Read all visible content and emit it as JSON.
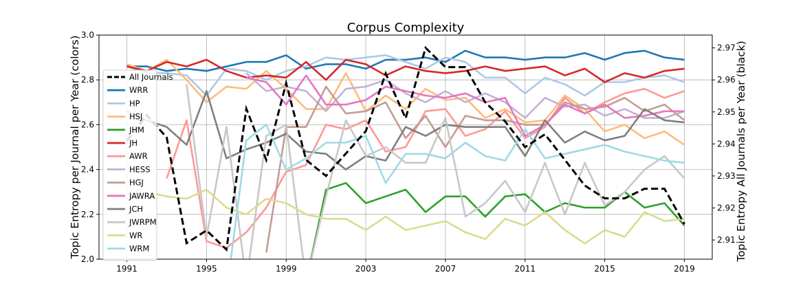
{
  "chart_data": {
    "type": "line",
    "title": "Corpus Complexity",
    "ylabel_left": "Topic Entropy per Journal per Year (colors)",
    "ylabel_right": "Topic Entropy All Journals per Year (black)",
    "x": [
      1991,
      1992,
      1993,
      1994,
      1995,
      1996,
      1997,
      1998,
      1999,
      2000,
      2001,
      2002,
      2003,
      2004,
      2005,
      2006,
      2007,
      2008,
      2009,
      2010,
      2011,
      2012,
      2013,
      2014,
      2015,
      2016,
      2017,
      2018,
      2019
    ],
    "xticks": [
      "1991",
      "1995",
      "1999",
      "2003",
      "2007",
      "2011",
      "2015",
      "2019"
    ],
    "xlim": [
      1989.6,
      2020.4
    ],
    "ylim_left": [
      2.0,
      3.0
    ],
    "ylim_right": [
      2.904,
      2.974
    ],
    "yticks_left": [
      "2.0",
      "2.2",
      "2.4",
      "2.6",
      "2.8",
      "3.0"
    ],
    "yticks_right": [
      "2.91",
      "2.92",
      "2.93",
      "2.94",
      "2.95",
      "2.96",
      "2.97"
    ],
    "grid": true,
    "legend_position": "upper-left",
    "series": [
      {
        "name": "WRR",
        "color": "#1f77b4",
        "values": [
          2.86,
          2.86,
          2.84,
          2.85,
          2.84,
          2.86,
          2.88,
          2.88,
          2.91,
          2.85,
          2.87,
          2.87,
          2.85,
          2.89,
          2.89,
          2.9,
          2.88,
          2.93,
          2.9,
          2.9,
          2.89,
          2.9,
          2.9,
          2.92,
          2.89,
          2.92,
          2.93,
          2.9,
          2.89
        ]
      },
      {
        "name": "HP",
        "color": "#aec7e8",
        "values": [
          2.86,
          2.83,
          2.83,
          2.82,
          2.73,
          2.85,
          2.84,
          2.8,
          2.84,
          2.86,
          2.9,
          2.89,
          2.9,
          2.91,
          2.88,
          2.85,
          2.9,
          2.88,
          2.81,
          2.81,
          2.74,
          2.81,
          2.78,
          2.73,
          2.79,
          2.79,
          2.81,
          2.82,
          2.79
        ]
      },
      {
        "name": "HSJ",
        "color": "#ffbb78",
        "values": [
          2.87,
          2.84,
          2.89,
          2.8,
          2.7,
          2.77,
          2.76,
          2.84,
          2.76,
          2.67,
          2.67,
          2.83,
          2.66,
          2.73,
          2.67,
          2.76,
          2.71,
          2.72,
          2.63,
          2.67,
          2.61,
          2.62,
          2.73,
          2.67,
          2.57,
          2.6,
          2.54,
          2.57,
          2.51
        ]
      },
      {
        "name": "JHM",
        "color": "#2ca02c",
        "values": [
          null,
          null,
          null,
          null,
          null,
          null,
          null,
          null,
          null,
          1.9,
          2.31,
          2.34,
          2.25,
          2.28,
          2.31,
          2.21,
          2.28,
          2.28,
          2.19,
          2.28,
          2.29,
          2.21,
          2.25,
          2.23,
          2.23,
          2.3,
          2.23,
          2.25,
          2.15
        ]
      },
      {
        "name": "JH",
        "color": "#d62728",
        "values": [
          2.86,
          2.84,
          2.88,
          2.86,
          2.89,
          2.84,
          2.81,
          2.82,
          2.81,
          2.88,
          2.8,
          2.89,
          2.87,
          2.82,
          2.86,
          2.84,
          2.83,
          2.84,
          2.86,
          2.84,
          2.85,
          2.86,
          2.82,
          2.85,
          2.79,
          2.83,
          2.81,
          2.84,
          2.85
        ]
      },
      {
        "name": "AWR",
        "color": "#ff9896",
        "values": [
          null,
          null,
          2.36,
          2.62,
          2.08,
          2.05,
          2.12,
          2.23,
          2.39,
          2.42,
          2.6,
          2.58,
          2.62,
          2.48,
          2.5,
          2.66,
          2.67,
          2.55,
          2.58,
          2.66,
          2.54,
          2.59,
          2.72,
          2.65,
          2.7,
          2.74,
          2.76,
          2.72,
          2.75
        ]
      },
      {
        "name": "HESS",
        "color": "#c5b0d5",
        "values": [
          null,
          null,
          null,
          null,
          null,
          null,
          2.83,
          2.75,
          2.77,
          2.75,
          2.66,
          2.76,
          2.77,
          2.8,
          2.74,
          2.7,
          2.75,
          2.7,
          2.74,
          2.7,
          2.63,
          2.72,
          2.68,
          2.69,
          2.64,
          2.67,
          2.63,
          2.63,
          2.66
        ]
      },
      {
        "name": "HGJ",
        "color": "#c49c94",
        "values": [
          null,
          null,
          null,
          null,
          null,
          null,
          null,
          2.03,
          2.59,
          2.59,
          2.77,
          2.65,
          2.66,
          2.7,
          2.54,
          2.64,
          2.5,
          2.64,
          2.62,
          2.62,
          2.6,
          2.6,
          2.7,
          2.67,
          2.68,
          2.72,
          2.66,
          2.69,
          2.62
        ]
      },
      {
        "name": "JAWRA",
        "color": "#e377c2",
        "values": [
          null,
          null,
          null,
          null,
          null,
          null,
          2.81,
          2.79,
          2.69,
          2.82,
          2.69,
          2.69,
          2.71,
          2.77,
          2.75,
          2.73,
          2.72,
          2.74,
          2.7,
          2.72,
          2.55,
          2.6,
          2.69,
          2.65,
          2.69,
          2.63,
          2.64,
          2.66,
          2.66
        ]
      },
      {
        "name": "JCH",
        "color": "#7f7f7f",
        "values": [
          2.66,
          2.62,
          2.59,
          2.51,
          2.75,
          2.45,
          2.49,
          2.52,
          2.56,
          2.48,
          2.47,
          2.4,
          2.46,
          2.44,
          2.59,
          2.55,
          2.6,
          2.59,
          2.59,
          2.59,
          2.46,
          2.62,
          2.52,
          2.57,
          2.53,
          2.55,
          2.67,
          2.62,
          2.61
        ]
      },
      {
        "name": "JWRPM",
        "color": "#c7c7c7",
        "values": [
          null,
          null,
          null,
          2.78,
          2.1,
          2.59,
          1.9,
          2.55,
          2.6,
          1.9,
          2.28,
          2.62,
          2.46,
          2.5,
          2.43,
          2.43,
          2.63,
          2.19,
          2.25,
          2.35,
          2.21,
          2.43,
          2.2,
          2.43,
          2.24,
          2.3,
          2.4,
          2.46,
          2.36
        ]
      },
      {
        "name": "WR",
        "color": "#dbdb8d",
        "values": [
          null,
          2.3,
          2.28,
          2.27,
          2.31,
          2.23,
          2.2,
          2.27,
          2.25,
          2.2,
          2.18,
          2.18,
          2.13,
          2.19,
          2.13,
          2.15,
          2.17,
          2.12,
          2.09,
          2.18,
          2.15,
          2.21,
          2.13,
          2.07,
          2.13,
          2.1,
          2.21,
          2.17,
          2.18
        ]
      },
      {
        "name": "WRM",
        "color": "#9edae5",
        "values": [
          null,
          null,
          null,
          null,
          null,
          1.85,
          2.53,
          2.6,
          2.4,
          2.45,
          2.52,
          2.52,
          2.55,
          2.34,
          2.47,
          2.47,
          2.45,
          2.52,
          2.46,
          2.44,
          2.58,
          2.45,
          2.47,
          2.49,
          2.51,
          2.48,
          2.46,
          2.44,
          2.43
        ]
      }
    ],
    "all_journals": {
      "name": "All Journals",
      "color": "#000000",
      "values": [
        2.941,
        2.949,
        2.942,
        2.909,
        2.913,
        2.907,
        2.951,
        2.935,
        2.959,
        2.935,
        2.93,
        2.937,
        2.944,
        2.962,
        2.948,
        2.97,
        2.964,
        2.964,
        2.953,
        2.947,
        2.939,
        2.943,
        2.935,
        2.927,
        2.923,
        2.923,
        2.926,
        2.926,
        2.915
      ]
    }
  }
}
